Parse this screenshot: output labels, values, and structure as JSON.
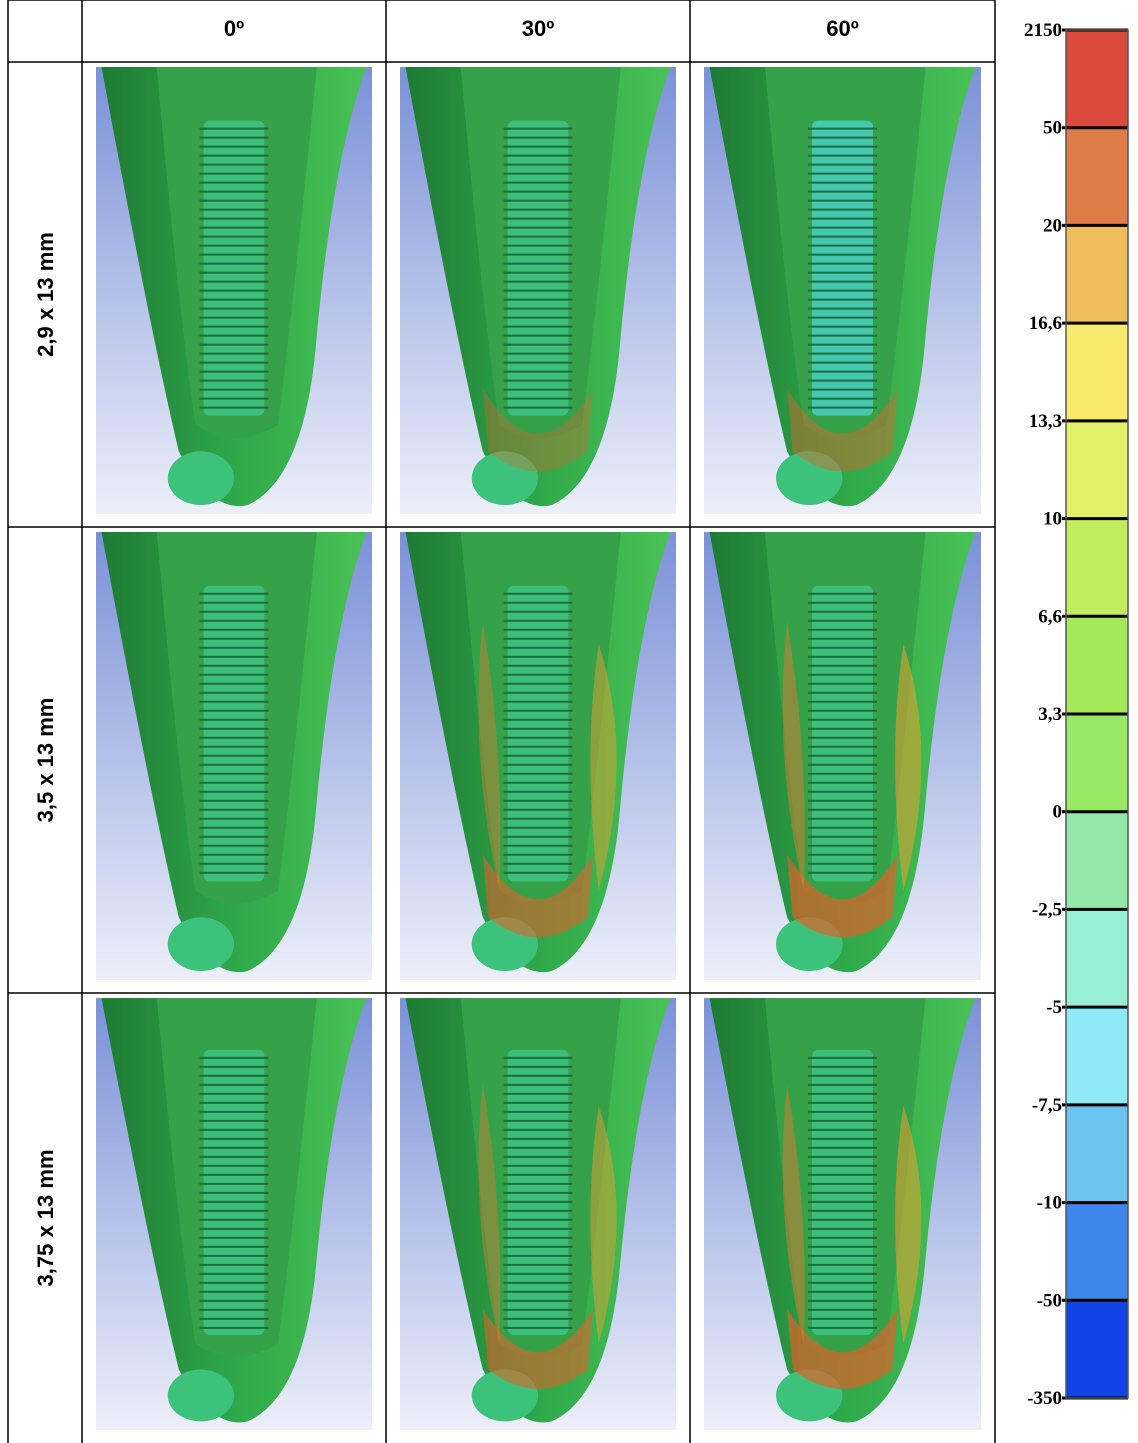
{
  "table": {
    "columns": [
      "0º",
      "30º",
      "60º"
    ],
    "rows": [
      "2,9 x 13 mm",
      "3,5 x 13 mm",
      "3,75 x 13 mm"
    ]
  },
  "legend": {
    "labels": [
      "2150",
      "50",
      "20",
      "16,6",
      "13,3",
      "10",
      "6,6",
      "3,3",
      "0",
      "-2,5",
      "-5",
      "-7,5",
      "-10",
      "-50",
      "-350"
    ],
    "colors": [
      "#db4a3c",
      "#e07c48",
      "#efbc5c",
      "#f8e96c",
      "#e3f06a",
      "#c2ec5e",
      "#a4e95a",
      "#99e966",
      "#92e8a6",
      "#97f0d6",
      "#8ee8f5",
      "#6cc3ef",
      "#3f86ea",
      "#1144e8"
    ]
  }
}
